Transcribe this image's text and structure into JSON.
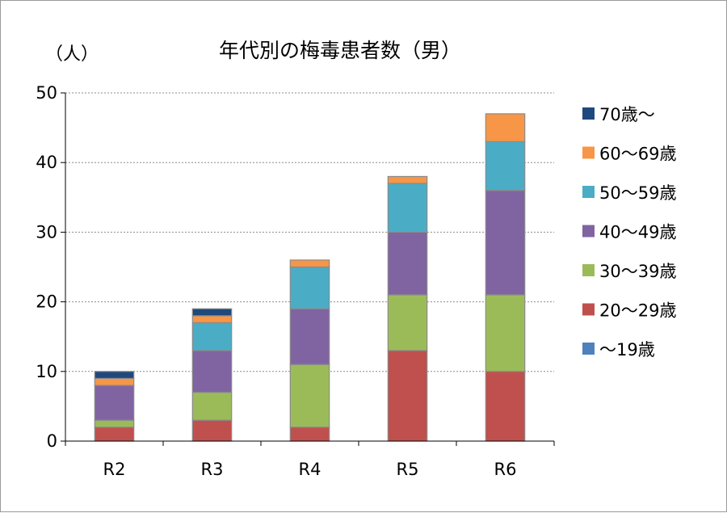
{
  "chart_data": {
    "type": "bar",
    "stacked": true,
    "title": "年代別の梅毒患者数（男）",
    "ylabel": "（人）",
    "xlabel": "",
    "ylim": [
      0,
      50
    ],
    "yticks": [
      0,
      10,
      20,
      30,
      40,
      50
    ],
    "grid": true,
    "legend_position": "right",
    "categories": [
      "R2",
      "R3",
      "R4",
      "R5",
      "R6"
    ],
    "series": [
      {
        "name": "～19歳",
        "color": "#4f81bd",
        "values": [
          0,
          0,
          0,
          0,
          0
        ]
      },
      {
        "name": "20～29歳",
        "color": "#c0504d",
        "values": [
          2,
          3,
          2,
          13,
          10
        ]
      },
      {
        "name": "30～39歳",
        "color": "#9bbb59",
        "values": [
          1,
          4,
          9,
          8,
          11
        ]
      },
      {
        "name": "40～49歳",
        "color": "#8064a2",
        "values": [
          5,
          6,
          8,
          9,
          15
        ]
      },
      {
        "name": "50～59歳",
        "color": "#4bacc6",
        "values": [
          0,
          4,
          6,
          7,
          7
        ]
      },
      {
        "name": "60～69歳",
        "color": "#f79646",
        "values": [
          1,
          1,
          1,
          1,
          4
        ]
      },
      {
        "name": "70歳～",
        "color": "#1f497d",
        "values": [
          1,
          1,
          0,
          0,
          0
        ]
      }
    ]
  }
}
